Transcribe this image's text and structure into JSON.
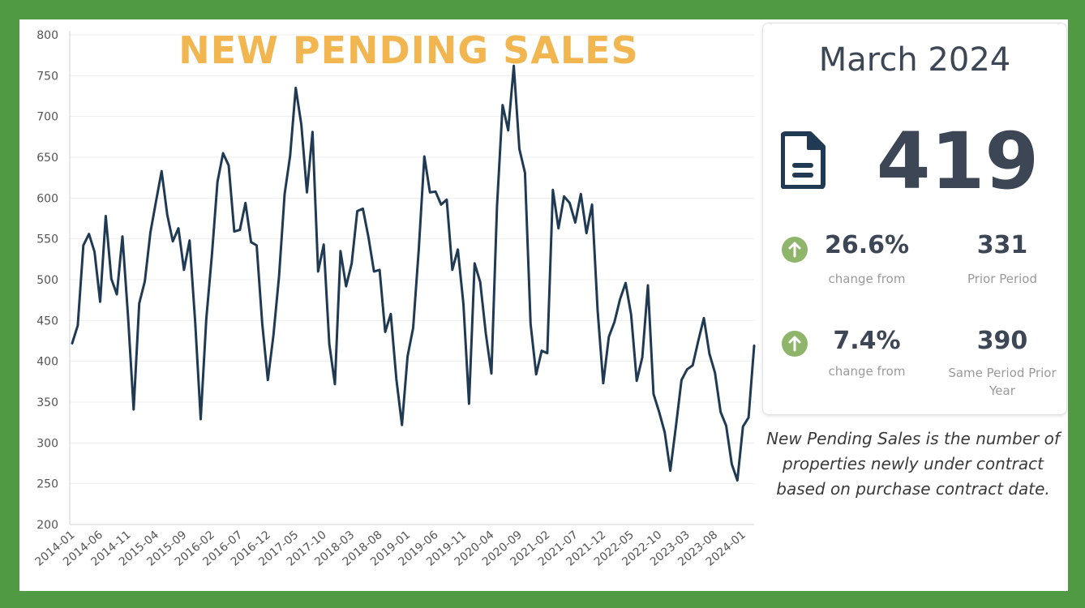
{
  "chart_data": {
    "type": "line",
    "title": "NEW PENDING SALES",
    "ylim": [
      200,
      800
    ],
    "yticks": [
      200,
      250,
      300,
      350,
      400,
      450,
      500,
      550,
      600,
      650,
      700,
      750,
      800
    ],
    "xtick_labels": [
      "2014-01",
      "2014-06",
      "2014-11",
      "2015-04",
      "2015-09",
      "2016-02",
      "2016-07",
      "2016-12",
      "2017-05",
      "2017-10",
      "2018-03",
      "2018-08",
      "2019-01",
      "2019-06",
      "2019-11",
      "2020-04",
      "2020-09",
      "2021-02",
      "2021-07",
      "2021-12",
      "2022-05",
      "2022-10",
      "2023-03",
      "2023-08",
      "2024-01"
    ],
    "grid": "horizontal",
    "x_start": "2014-01",
    "x_end": "2024-03",
    "series": [
      {
        "color": "#1f3a52",
        "values": [
          422,
          444,
          542,
          556,
          534,
          473,
          578,
          501,
          482,
          553,
          455,
          341,
          471,
          498,
          558,
          596,
          633,
          580,
          547,
          563,
          512,
          548,
          448,
          329,
          452,
          530,
          620,
          655,
          640,
          559,
          561,
          594,
          546,
          542,
          446,
          377,
          432,
          504,
          605,
          652,
          735,
          690,
          607,
          681,
          510,
          543,
          421,
          372,
          535,
          492,
          520,
          584,
          587,
          552,
          510,
          512,
          436,
          458,
          378,
          322,
          406,
          441,
          537,
          651,
          607,
          608,
          592,
          598,
          512,
          537,
          470,
          348,
          520,
          497,
          434,
          385,
          590,
          714,
          683,
          762,
          660,
          631,
          446,
          384,
          413,
          410,
          610,
          563,
          602,
          594,
          570,
          605,
          557,
          592,
          462,
          373,
          430,
          448,
          476,
          496,
          457,
          376,
          405,
          493,
          360,
          338,
          313,
          266,
          320,
          377,
          390,
          395,
          425,
          453,
          409,
          386,
          338,
          321,
          274,
          254,
          320,
          331,
          419
        ]
      }
    ]
  },
  "stats": {
    "month": "March 2024",
    "value": "419",
    "period_change": {
      "pct": "26.6%",
      "label": "change from",
      "ref_value": "331",
      "ref_label": "Prior Period"
    },
    "year_change": {
      "pct": "7.4%",
      "label": "change from",
      "ref_value": "390",
      "ref_label": "Same Period Prior Year"
    },
    "icon_doc": "document-icon",
    "icon_up": "arrow-up-circle-icon",
    "up_color": "#8eb56a",
    "text_color": "#3c4655"
  },
  "description": "New Pending Sales is the number of properties newly under contract based on purchase contract date."
}
